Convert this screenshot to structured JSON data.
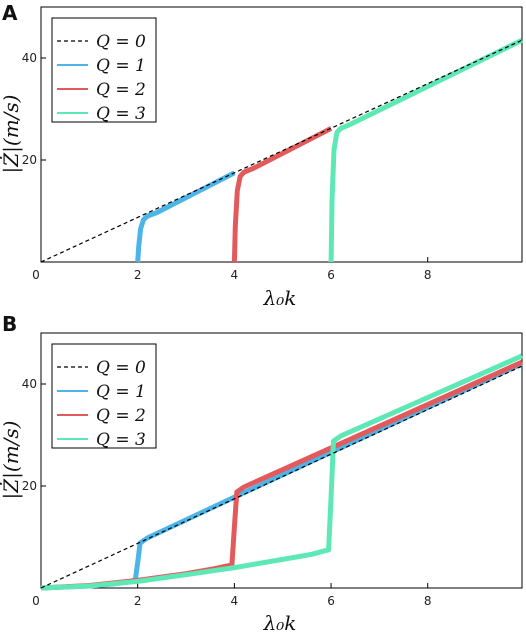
{
  "chart_data": [
    {
      "type": "line",
      "panel": "A",
      "xlabel": "λ₀k",
      "ylabel": "|Ż|(m/s)",
      "xlim": [
        0,
        9.95
      ],
      "ylim": [
        0,
        50
      ],
      "xticks": [
        "0",
        "2",
        "4",
        "6",
        "8"
      ],
      "yticks": [
        "20",
        "40"
      ],
      "legend_position": "top-left",
      "series": [
        {
          "name": "Q = 0",
          "color": "#000000",
          "style": "dashed",
          "x": [
            0,
            9.95
          ],
          "y": [
            0,
            43.5
          ]
        },
        {
          "name": "Q = 1",
          "color": "#4cb4e7",
          "style": "solid",
          "x": [
            2.0,
            2.02,
            2.06,
            2.12,
            2.2,
            2.4,
            4.0
          ],
          "y": [
            0,
            3.0,
            6.5,
            8.3,
            9.0,
            9.7,
            17.5
          ]
        },
        {
          "name": "Q = 2",
          "color": "#e25a5c",
          "style": "solid",
          "x": [
            4.0,
            4.02,
            4.06,
            4.12,
            4.2,
            4.4,
            6.0
          ],
          "y": [
            0,
            7.0,
            14.0,
            16.8,
            17.6,
            18.4,
            26.2
          ]
        },
        {
          "name": "Q = 3",
          "color": "#5ee8b5",
          "style": "solid",
          "x": [
            6.0,
            6.02,
            6.06,
            6.12,
            6.2,
            6.4,
            9.95
          ],
          "y": [
            0,
            12.0,
            22.0,
            25.4,
            26.2,
            27.0,
            43.5
          ]
        }
      ]
    },
    {
      "type": "line",
      "panel": "B",
      "xlabel": "λ₀k",
      "ylabel": "|Ż|(m/s)",
      "xlim": [
        0,
        9.95
      ],
      "ylim": [
        0,
        50
      ],
      "xticks": [
        "0",
        "2",
        "4",
        "6",
        "8"
      ],
      "yticks": [
        "20",
        "40"
      ],
      "legend_position": "top-left",
      "series": [
        {
          "name": "Q = 0",
          "color": "#000000",
          "style": "dashed",
          "x": [
            0,
            9.95
          ],
          "y": [
            0,
            43.5
          ]
        },
        {
          "name": "Q = 1",
          "color": "#4cb4e7",
          "style": "solid",
          "x": [
            0,
            1.0,
            1.5,
            1.8,
            1.95,
            2.0,
            2.05,
            2.2,
            4.0,
            9.95
          ],
          "y": [
            0,
            0.4,
            0.8,
            1.2,
            1.6,
            5.0,
            8.8,
            9.8,
            17.8,
            44.0
          ]
        },
        {
          "name": "Q = 2",
          "color": "#e25a5c",
          "style": "solid",
          "x": [
            0,
            1.0,
            2.0,
            3.0,
            3.6,
            3.95,
            4.0,
            4.05,
            4.2,
            9.95
          ],
          "y": [
            0,
            0.5,
            1.5,
            2.8,
            3.8,
            4.5,
            12.0,
            18.8,
            19.8,
            44.3
          ]
        },
        {
          "name": "Q = 3",
          "color": "#5ee8b5",
          "style": "solid",
          "x": [
            0,
            1.0,
            2.0,
            3.0,
            4.0,
            5.0,
            5.6,
            5.95,
            6.0,
            6.05,
            6.2,
            9.95
          ],
          "y": [
            0,
            0.4,
            1.3,
            2.6,
            4.0,
            5.6,
            6.6,
            7.5,
            18.0,
            28.8,
            29.8,
            45.5
          ]
        }
      ]
    }
  ]
}
